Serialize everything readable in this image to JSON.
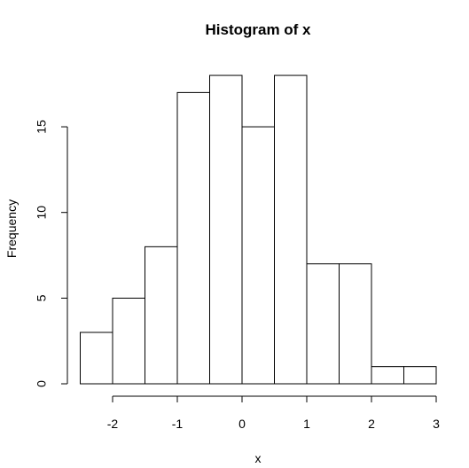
{
  "chart_data": {
    "type": "bar",
    "subtype": "histogram",
    "title": "Histogram of x",
    "xlabel": "x",
    "ylabel": "Frequency",
    "bins": [
      {
        "x0": -2.5,
        "x1": -2.0,
        "count": 3
      },
      {
        "x0": -2.0,
        "x1": -1.5,
        "count": 5
      },
      {
        "x0": -1.5,
        "x1": -1.0,
        "count": 8
      },
      {
        "x0": -1.0,
        "x1": -0.5,
        "count": 17
      },
      {
        "x0": -0.5,
        "x1": 0.0,
        "count": 18
      },
      {
        "x0": 0.0,
        "x1": 0.5,
        "count": 15
      },
      {
        "x0": 0.5,
        "x1": 1.0,
        "count": 18
      },
      {
        "x0": 1.0,
        "x1": 1.5,
        "count": 7
      },
      {
        "x0": 1.5,
        "x1": 2.0,
        "count": 7
      },
      {
        "x0": 2.0,
        "x1": 2.5,
        "count": 1
      },
      {
        "x0": 2.5,
        "x1": 3.0,
        "count": 1
      }
    ],
    "x_ticks": [
      -2,
      -1,
      0,
      1,
      2,
      3
    ],
    "x_tick_labels": [
      "-2",
      "-1",
      "0",
      "1",
      "2",
      "3"
    ],
    "y_ticks": [
      0,
      5,
      10,
      15
    ],
    "y_tick_labels": [
      "0",
      "5",
      "10",
      "15"
    ],
    "xlim": [
      -2.5,
      3.0
    ],
    "ylim": [
      0,
      18
    ],
    "grid": false,
    "colors": {
      "bar_fill": "#ffffff",
      "bar_stroke": "#000000",
      "axis": "#000000"
    }
  }
}
